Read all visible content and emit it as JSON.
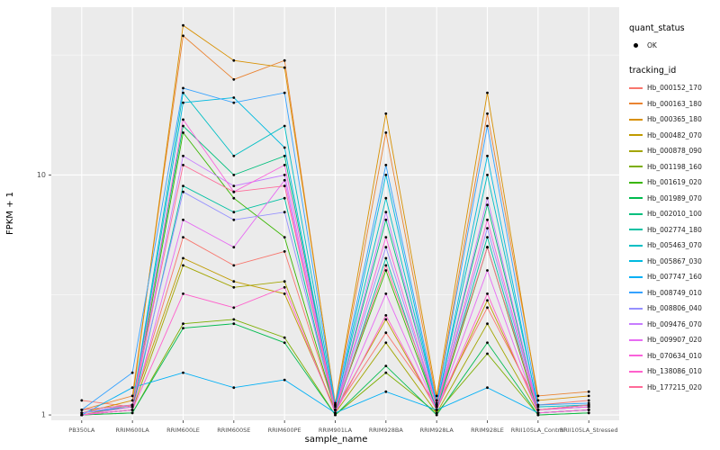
{
  "figure": {
    "xlabel": "sample_name",
    "ylabel": "FPKM + 1",
    "panel_background": "#EBEBEB",
    "grid_color": "#FFFFFF",
    "axis_text_color": "#4D4D4D"
  },
  "legend": {
    "quant_status_title": "quant_status",
    "quant_status_items": [
      {
        "label": "OK",
        "marker": "black-point"
      }
    ],
    "tracking_title": "tracking_id"
  },
  "chart_data": {
    "type": "line",
    "x_type": "categorical",
    "title": "",
    "xlabel": "sample_name",
    "ylabel": "FPKM + 1",
    "yscale": "log10",
    "ylim": [
      0.95,
      50
    ],
    "y_major_ticks": [
      1,
      10
    ],
    "y_minor_ticks": [
      3.162,
      31.62
    ],
    "grid": true,
    "legend_position": "right",
    "point_marker": "filled-black-point",
    "categories": [
      "PB350LA",
      "RRIM600LA",
      "RRIM600LE",
      "RRIM600SE",
      "RRIM600PE",
      "RRIM901LA",
      "RRIM928BA",
      "RRIM928LA",
      "RRIM928LE",
      "RRII105LA_Control",
      "RRII105LA_Stressed"
    ],
    "series": [
      {
        "name": "Hb_000152_170",
        "color": "#F8766D",
        "values": [
          1.15,
          1.08,
          5.5,
          4.2,
          4.8,
          1.05,
          2.2,
          1.1,
          2.8,
          1.1,
          1.15
        ]
      },
      {
        "name": "Hb_000163_180",
        "color": "#EA8331",
        "values": [
          1.05,
          1.2,
          38,
          25,
          30,
          1.1,
          15,
          1.15,
          18,
          1.2,
          1.25
        ]
      },
      {
        "name": "Hb_000365_180",
        "color": "#D89000",
        "values": [
          1.02,
          1.15,
          42,
          30,
          28,
          1.12,
          18,
          1.2,
          22,
          1.15,
          1.2
        ]
      },
      {
        "name": "Hb_000482_070",
        "color": "#C09B00",
        "values": [
          1.0,
          1.1,
          4.5,
          3.6,
          3.2,
          1.05,
          2.5,
          1.05,
          3.0,
          1.05,
          1.1
        ]
      },
      {
        "name": "Hb_000878_090",
        "color": "#A3A500",
        "values": [
          1.0,
          1.05,
          4.2,
          3.4,
          3.6,
          1.02,
          2.0,
          1.02,
          2.4,
          1.02,
          1.05
        ]
      },
      {
        "name": "Hb_001198_160",
        "color": "#7CAE00",
        "values": [
          1.0,
          1.02,
          2.4,
          2.5,
          2.1,
          1.0,
          1.5,
          1.02,
          1.8,
          1.0,
          1.02
        ]
      },
      {
        "name": "Hb_001619_020",
        "color": "#39B600",
        "values": [
          1.0,
          1.05,
          15,
          8,
          5.5,
          1.05,
          4.0,
          1.05,
          5.0,
          1.02,
          1.05
        ]
      },
      {
        "name": "Hb_001989_070",
        "color": "#00BB4E",
        "values": [
          1.0,
          1.02,
          2.3,
          2.4,
          2.0,
          1.0,
          1.6,
          1.0,
          2.0,
          1.0,
          1.02
        ]
      },
      {
        "name": "Hb_002010_100",
        "color": "#00BF7D",
        "values": [
          1.02,
          1.1,
          16,
          10,
          12,
          1.05,
          6.5,
          1.1,
          7.5,
          1.05,
          1.1
        ]
      },
      {
        "name": "Hb_002774_180",
        "color": "#00C1A3",
        "values": [
          1.0,
          1.05,
          9,
          7,
          8,
          1.02,
          4.5,
          1.05,
          5.5,
          1.02,
          1.05
        ]
      },
      {
        "name": "Hb_005463_070",
        "color": "#00BFC4",
        "values": [
          1.05,
          1.1,
          22,
          12,
          16,
          1.08,
          8,
          1.1,
          10,
          1.08,
          1.1
        ]
      },
      {
        "name": "Hb_005867_030",
        "color": "#00BAE0",
        "values": [
          1.02,
          1.08,
          20,
          21,
          13,
          1.05,
          10,
          1.08,
          12,
          1.05,
          1.08
        ]
      },
      {
        "name": "Hb_007747_160",
        "color": "#00B0F6",
        "values": [
          1.0,
          1.3,
          1.5,
          1.3,
          1.4,
          1.02,
          1.25,
          1.05,
          1.3,
          1.02,
          1.05
        ]
      },
      {
        "name": "Hb_008749_010",
        "color": "#35A2FF",
        "values": [
          1.05,
          1.5,
          23,
          20,
          22,
          1.1,
          11,
          1.12,
          16,
          1.1,
          1.12
        ]
      },
      {
        "name": "Hb_008806_040",
        "color": "#9590FF",
        "values": [
          1.02,
          1.1,
          8.5,
          6.5,
          7.0,
          1.05,
          5.0,
          1.08,
          6.0,
          1.05,
          1.08
        ]
      },
      {
        "name": "Hb_009476_070",
        "color": "#C77CFF",
        "values": [
          1.02,
          1.1,
          12,
          9,
          10,
          1.05,
          7.0,
          1.08,
          8.0,
          1.05,
          1.08
        ]
      },
      {
        "name": "Hb_009907_020",
        "color": "#E76BF3",
        "values": [
          1.0,
          1.05,
          6.5,
          5.0,
          9.5,
          1.02,
          3.2,
          1.05,
          4.0,
          1.02,
          1.05
        ]
      },
      {
        "name": "Hb_070634_010",
        "color": "#FA62DB",
        "values": [
          1.0,
          1.08,
          17,
          8.5,
          11,
          1.05,
          5.5,
          1.08,
          6.5,
          1.05,
          1.08
        ]
      },
      {
        "name": "Hb_138086_010",
        "color": "#FF61CC",
        "values": [
          1.0,
          1.05,
          3.2,
          2.8,
          3.4,
          1.02,
          2.6,
          1.05,
          3.2,
          1.02,
          1.05
        ]
      },
      {
        "name": "Hb_177215_020",
        "color": "#FF6A98",
        "values": [
          1.05,
          1.1,
          11,
          8.5,
          9.0,
          1.05,
          4.2,
          1.1,
          5.0,
          1.05,
          1.1
        ]
      }
    ]
  }
}
